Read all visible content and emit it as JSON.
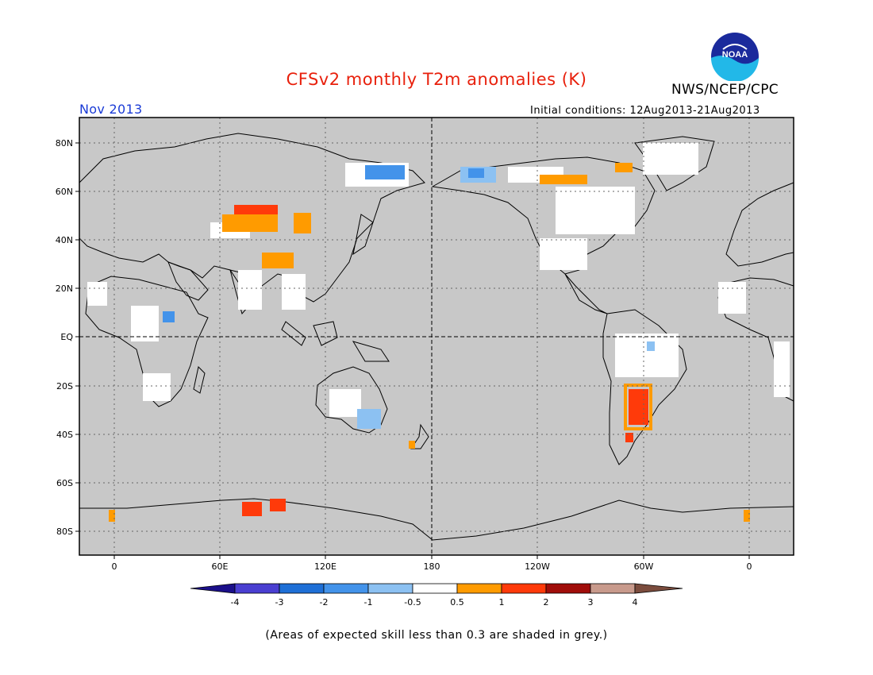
{
  "header": {
    "title": "CFSv2 monthly T2m anomalies (K)",
    "agency": "NWS/NCEP/CPC",
    "logo_text": "NOAA",
    "month": "Nov 2013",
    "initial_conditions": "Initial conditions: 12Aug2013-21Aug2013"
  },
  "map": {
    "projection": "cylindrical equidistant, centered 180",
    "lat_labels": [
      "80N",
      "60N",
      "40N",
      "20N",
      "EQ",
      "20S",
      "40S",
      "60S",
      "80S"
    ],
    "lon_labels": [
      "0",
      "60E",
      "120E",
      "180",
      "120W",
      "60W",
      "0"
    ],
    "ocean_color": "#c8c8c8",
    "land_skill_color": "#ffffff"
  },
  "colorbar": {
    "labels": [
      "-4",
      "-3",
      "-2",
      "-1",
      "-0.5",
      "0.5",
      "1",
      "2",
      "3",
      "4"
    ],
    "colors": [
      "#1b0f8a",
      "#4a3fd1",
      "#1e6fd6",
      "#4393ea",
      "#8cc1f2",
      "#ffffff",
      "#ff9b00",
      "#ff3a0a",
      "#a00d0a",
      "#c89a8c",
      "#7b4c3d"
    ]
  },
  "footnote": "(Areas of expected skill less than 0.3 are shaded in grey.)",
  "colors": {
    "title": "#e8200c",
    "month": "#1a3bd6",
    "text": "#000000"
  }
}
